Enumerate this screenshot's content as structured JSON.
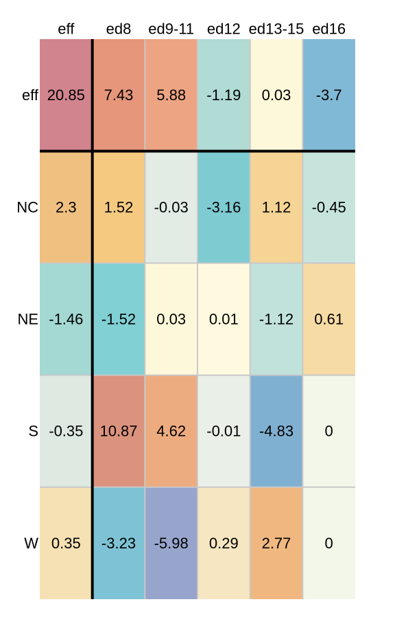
{
  "chart_data": {
    "type": "heatmap",
    "title": "",
    "xlabel": "",
    "ylabel": "",
    "columns": [
      "eff",
      "ed8",
      "ed9-11",
      "ed12",
      "ed13-15",
      "ed16"
    ],
    "rows": [
      "eff",
      "NC",
      "NE",
      "S",
      "W"
    ],
    "values": [
      [
        20.85,
        7.43,
        5.88,
        -1.19,
        0.03,
        -3.7
      ],
      [
        2.3,
        1.52,
        -0.03,
        -3.16,
        1.12,
        -0.45
      ],
      [
        -1.46,
        -1.52,
        0.03,
        0.01,
        -1.12,
        0.61
      ],
      [
        -0.35,
        10.87,
        4.62,
        -0.01,
        -4.83,
        0
      ],
      [
        0.35,
        -3.23,
        -5.98,
        0.29,
        2.77,
        0
      ]
    ],
    "cell_colors": [
      [
        "#d1848d",
        "#e6967a",
        "#eca482",
        "#b1dbd5",
        "#fef8da",
        "#80b9d5"
      ],
      [
        "#f0c080",
        "#f5ca80",
        "#e2ece4",
        "#7ecbd2",
        "#f6d495",
        "#c6e4db"
      ],
      [
        "#a3d8d3",
        "#80d0d4",
        "#fef8da",
        "#fffadf",
        "#c1e2da",
        "#f6dba4"
      ],
      [
        "#dde9e1",
        "#db937e",
        "#edac80",
        "#eaf0e8",
        "#80b0d1",
        "#f3f7ea"
      ],
      [
        "#f6e1b4",
        "#7dc2d5",
        "#97a5cd",
        "#f6e6c1",
        "#f0b880",
        "#f3f7ea"
      ]
    ],
    "separator_color": "#000000",
    "grid_color": "#c8c8c8"
  }
}
